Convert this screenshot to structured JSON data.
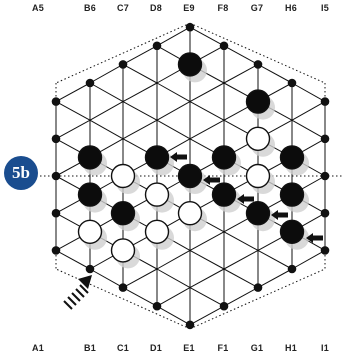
{
  "badge": {
    "label": "5b",
    "color": "#1a4d8f"
  },
  "top_labels": [
    "A5",
    "B6",
    "C7",
    "D8",
    "E9",
    "F8",
    "G7",
    "H6",
    "I5"
  ],
  "bottom_labels": [
    "A1",
    "B1",
    "C1",
    "D1",
    "E1",
    "F1",
    "G1",
    "H1",
    "I1"
  ],
  "board": {
    "shape": "hexagonal",
    "files": [
      "A",
      "B",
      "C",
      "D",
      "E",
      "F",
      "G",
      "H",
      "I"
    ],
    "black_stones": [
      "E8",
      "B3",
      "B4",
      "G6",
      "H4",
      "H5",
      "D5",
      "E5",
      "F5",
      "G4",
      "H3",
      "C3",
      "F6",
      "F4"
    ],
    "white_stones": [
      "G5",
      "G4w",
      "D4",
      "E4",
      "B2",
      "C2",
      "D3",
      "C1w"
    ],
    "arrows": 6,
    "entry_arrow": "bottom-left"
  }
}
